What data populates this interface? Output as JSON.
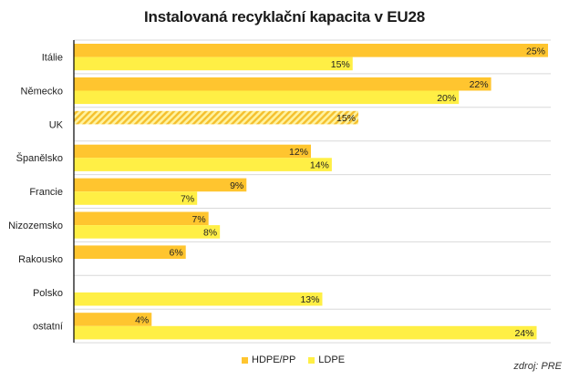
{
  "chart_data": {
    "type": "bar",
    "orientation": "horizontal",
    "title": "Instalovaná recyklační kapacita v EU28",
    "xlabel": "",
    "ylabel": "",
    "xlim": [
      0,
      25.2
    ],
    "grid": "category separators",
    "legend_position": "bottom",
    "categories": [
      "Itálie",
      "Německo",
      "UK",
      "Španělsko",
      "Francie",
      "Nizozemsko",
      "Rakousko",
      "Polsko",
      "ostatní"
    ],
    "series": [
      {
        "name": "HDPE/PP",
        "color": "#FFC52F",
        "values": [
          25.0,
          22.0,
          null,
          12.5,
          9.1,
          7.1,
          5.9,
          null,
          4.1
        ],
        "labels": [
          "25%",
          "22%",
          null,
          "12%",
          "9%",
          "7%",
          "6%",
          null,
          "4%"
        ]
      },
      {
        "name": "LDPE",
        "color": "#FFEF45",
        "values": [
          14.7,
          20.3,
          null,
          13.6,
          6.5,
          7.7,
          null,
          13.1,
          24.4
        ],
        "labels": [
          "15%",
          "20%",
          null,
          "14%",
          "7%",
          "8%",
          null,
          "13%",
          "24%"
        ]
      }
    ],
    "combined": [
      {
        "category": "UK",
        "value": 15.0,
        "label": "15%",
        "style": "hatched",
        "colors": [
          "#F5C02E",
          "#FFF3A0"
        ]
      }
    ],
    "source": "zdroj: PRE"
  }
}
